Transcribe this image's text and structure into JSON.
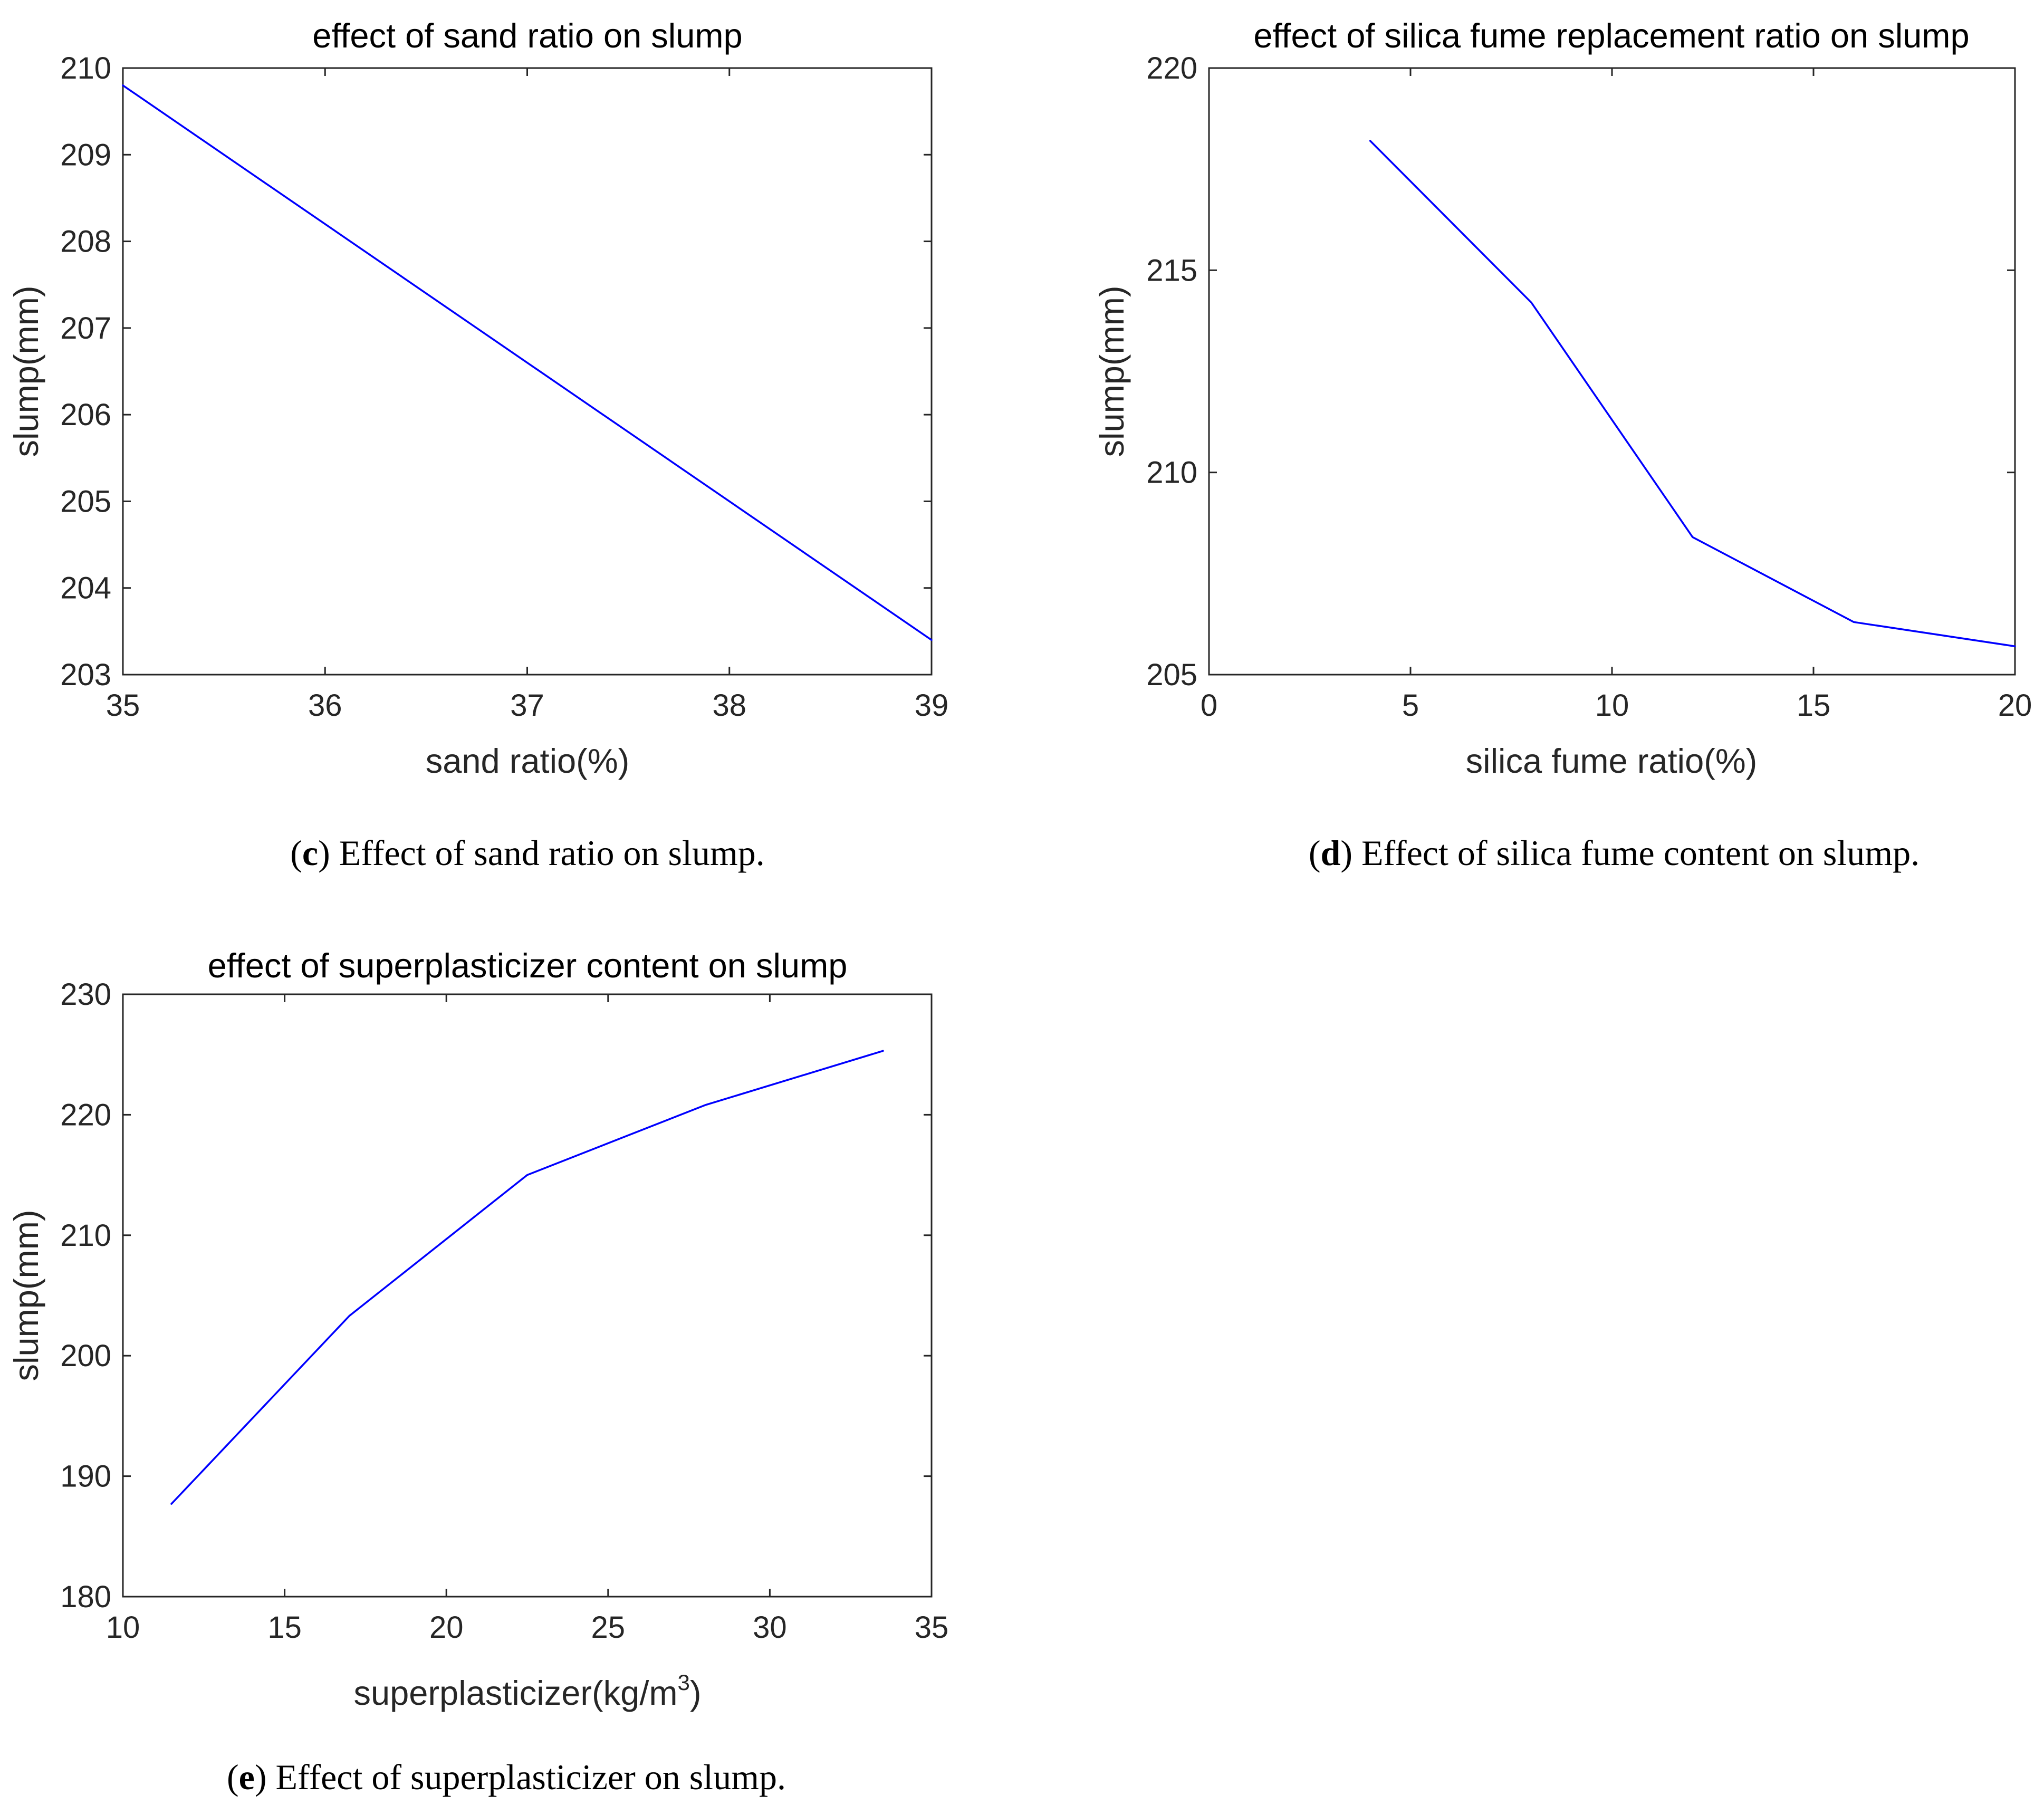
{
  "chart_data": [
    {
      "type": "line",
      "title": "effect of sand ratio on slump",
      "xlabel": "sand ratio(%)",
      "ylabel": "slump(mm)",
      "xlim": [
        35,
        39
      ],
      "ylim": [
        203,
        210
      ],
      "xticks": [
        35,
        36,
        37,
        38,
        39
      ],
      "yticks": [
        203,
        204,
        205,
        206,
        207,
        208,
        209,
        210
      ],
      "series": [
        {
          "name": "slump",
          "color": "#0000ff",
          "x": [
            35,
            39
          ],
          "y": [
            209.8,
            203.4
          ]
        }
      ],
      "caption": {
        "letter": "c",
        "text": " Effect of sand ratio on slump."
      }
    },
    {
      "type": "line",
      "title": "effect of silica fume replacement ratio on slump",
      "xlabel": "silica fume ratio(%)",
      "ylabel": "slump(mm)",
      "xlim": [
        0,
        20
      ],
      "ylim": [
        205,
        220
      ],
      "xticks": [
        0,
        5,
        10,
        15,
        20
      ],
      "yticks": [
        205,
        210,
        215,
        220
      ],
      "series": [
        {
          "name": "slump",
          "color": "#0000ff",
          "x": [
            4,
            8,
            12,
            16,
            20
          ],
          "y": [
            218.2,
            214.2,
            208.4,
            206.3,
            205.7
          ]
        }
      ],
      "caption": {
        "letter": "d",
        "text": " Effect of silica fume content on slump."
      }
    },
    {
      "type": "line",
      "title": "effect of superplasticizer content on slump",
      "xlabel": "superplasticizer(kg/m",
      "xlabel_superscript": "3",
      "xlabel_suffix": ")",
      "ylabel": "slump(mm)",
      "xlim": [
        10,
        35
      ],
      "ylim": [
        180,
        230
      ],
      "xticks": [
        10,
        15,
        20,
        25,
        30,
        35
      ],
      "yticks": [
        180,
        190,
        200,
        210,
        220,
        230
      ],
      "series": [
        {
          "name": "slump",
          "color": "#0000ff",
          "x": [
            11.5,
            17,
            22.5,
            28,
            33.5
          ],
          "y": [
            187.7,
            203.3,
            215.0,
            220.8,
            225.3
          ]
        }
      ],
      "caption": {
        "letter": "e",
        "text": " Effect of superplasticizer on slump."
      }
    }
  ]
}
